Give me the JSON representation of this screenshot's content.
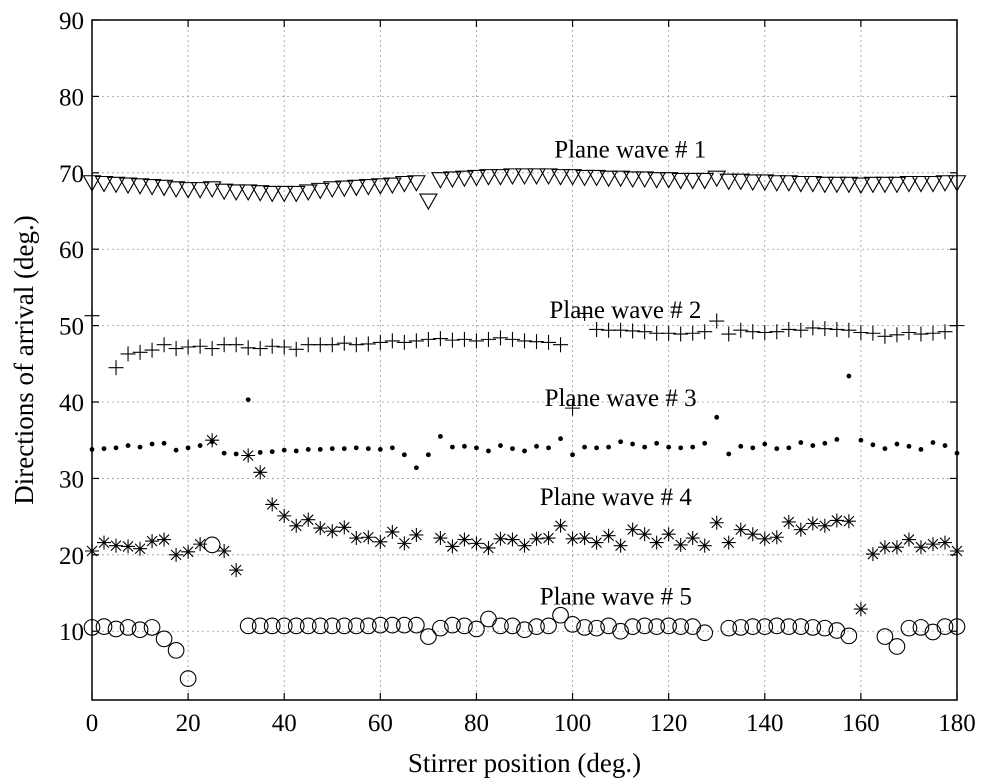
{
  "chart_data": {
    "type": "scatter",
    "xlabel": "Stirrer position (deg.)",
    "ylabel": "Directions of arrival (deg.)",
    "xlim": [
      0,
      180
    ],
    "ylim": [
      1,
      90
    ],
    "xticks": [
      "0",
      "20",
      "40",
      "60",
      "80",
      "100",
      "120",
      "140",
      "160",
      "180"
    ],
    "yticks": [
      "10",
      "20",
      "30",
      "40",
      "50",
      "60",
      "70",
      "80",
      "90"
    ],
    "grid": true,
    "annotations": [
      {
        "text": "Plane wave # 1",
        "x": 112,
        "y": 72
      },
      {
        "text": "Plane wave # 2",
        "x": 111,
        "y": 51
      },
      {
        "text": "Plane wave # 3",
        "x": 110,
        "y": 39.5
      },
      {
        "text": "Plane wave # 4",
        "x": 109,
        "y": 26.5
      },
      {
        "text": "Plane wave # 5",
        "x": 109,
        "y": 13.5
      }
    ],
    "series": [
      {
        "marker": "triangle-down",
        "x": [
          0,
          2.5,
          5,
          7.5,
          10,
          12.5,
          15,
          17.5,
          20,
          22.5,
          25,
          27.5,
          30,
          32.5,
          35,
          37.5,
          40,
          42.5,
          45,
          47.5,
          50,
          52.5,
          55,
          57.5,
          60,
          62.5,
          65,
          67.5,
          70,
          72.5,
          75,
          77.5,
          80,
          82.5,
          85,
          87.5,
          90,
          92.5,
          95,
          97.5,
          100,
          102.5,
          105,
          107.5,
          110,
          112.5,
          115,
          117.5,
          120,
          122.5,
          125,
          127.5,
          130,
          132.5,
          135,
          137.5,
          140,
          142.5,
          145,
          147.5,
          150,
          152.5,
          155,
          157.5,
          160,
          162.5,
          165,
          167.5,
          170,
          172.5,
          175,
          177.5,
          180
        ],
        "y": [
          68.7,
          68.6,
          68.5,
          68.4,
          68.3,
          68.2,
          68.1,
          67.9,
          67.8,
          67.8,
          67.9,
          67.6,
          67.5,
          67.5,
          67.4,
          67.3,
          67.3,
          67.3,
          67.5,
          67.7,
          67.9,
          68.0,
          68.1,
          68.2,
          68.3,
          68.4,
          68.6,
          68.7,
          66.3,
          69.1,
          69.2,
          69.3,
          69.4,
          69.5,
          69.5,
          69.6,
          69.6,
          69.6,
          69.6,
          69.5,
          69.5,
          69.4,
          69.4,
          69.3,
          69.3,
          69.2,
          69.2,
          69.1,
          69.1,
          69.0,
          69.0,
          69.0,
          69.3,
          68.9,
          68.9,
          68.8,
          68.8,
          68.7,
          68.7,
          68.6,
          68.6,
          68.5,
          68.5,
          68.5,
          68.4,
          68.5,
          68.5,
          68.5,
          68.6,
          68.6,
          68.6,
          68.7,
          68.7
        ]
      },
      {
        "marker": "plus",
        "x": [
          0,
          5,
          7.5,
          10,
          12.5,
          15,
          17.5,
          20,
          22.5,
          25,
          27.5,
          30,
          32.5,
          35,
          37.5,
          40,
          42.5,
          45,
          47.5,
          50,
          52.5,
          55,
          57.5,
          60,
          62.5,
          65,
          67.5,
          70,
          72.5,
          75,
          77.5,
          80,
          82.5,
          85,
          87.5,
          90,
          92.5,
          95,
          97.5,
          100,
          102.5,
          105,
          107.5,
          110,
          112.5,
          115,
          117.5,
          120,
          122.5,
          125,
          127.5,
          130,
          132.5,
          135,
          137.5,
          140,
          142.5,
          145,
          147.5,
          150,
          152.5,
          155,
          157.5,
          160,
          162.5,
          165,
          167.5,
          170,
          172.5,
          175,
          177.5,
          180
        ],
        "y": [
          51.3,
          44.5,
          46.3,
          46.5,
          46.8,
          47.5,
          47.0,
          47.2,
          47.3,
          47.0,
          47.5,
          47.5,
          47.1,
          47.0,
          47.3,
          47.2,
          46.9,
          47.5,
          47.5,
          47.5,
          47.7,
          47.5,
          47.6,
          47.8,
          48.0,
          47.8,
          48.0,
          48.2,
          48.3,
          48.1,
          48.2,
          48.0,
          48.2,
          48.4,
          48.2,
          48.0,
          47.9,
          47.8,
          47.5,
          39.2,
          51.6,
          49.5,
          49.4,
          49.4,
          49.3,
          49.2,
          49.0,
          49.0,
          48.9,
          49.0,
          49.2,
          50.6,
          48.9,
          49.4,
          49.2,
          49.1,
          49.2,
          49.5,
          49.4,
          49.7,
          49.6,
          49.5,
          49.4,
          49.1,
          49.0,
          48.6,
          48.8,
          49.1,
          48.9,
          49.0,
          49.2,
          50.0
        ]
      },
      {
        "marker": "dot",
        "x": [
          0,
          2.5,
          5,
          7.5,
          10,
          12.5,
          15,
          17.5,
          20,
          22.5,
          25,
          27.5,
          30,
          32.5,
          35,
          37.5,
          40,
          42.5,
          45,
          47.5,
          50,
          52.5,
          55,
          57.5,
          60,
          62.5,
          65,
          67.5,
          70,
          72.5,
          75,
          77.5,
          80,
          82.5,
          85,
          87.5,
          90,
          92.5,
          95,
          97.5,
          100,
          102.5,
          105,
          107.5,
          110,
          112.5,
          115,
          117.5,
          120,
          122.5,
          125,
          127.5,
          130,
          132.5,
          135,
          137.5,
          140,
          142.5,
          145,
          147.5,
          150,
          152.5,
          155,
          157.5,
          160,
          162.5,
          165,
          167.5,
          170,
          172.5,
          175,
          177.5,
          180
        ],
        "y": [
          33.8,
          33.9,
          34.0,
          34.3,
          34.1,
          34.5,
          34.6,
          33.7,
          34.0,
          34.3,
          34.8,
          33.3,
          33.2,
          40.3,
          33.4,
          33.5,
          33.7,
          33.6,
          33.8,
          33.8,
          33.9,
          33.9,
          34.0,
          33.9,
          33.8,
          34.0,
          33.1,
          31.4,
          33.1,
          35.5,
          34.1,
          34.2,
          34.0,
          33.6,
          34.3,
          33.9,
          33.6,
          34.2,
          34.0,
          35.2,
          33.1,
          34.1,
          34.0,
          34.1,
          34.8,
          34.5,
          34.1,
          34.6,
          34.1,
          34.0,
          34.1,
          34.6,
          38.0,
          33.2,
          34.2,
          34.0,
          34.5,
          33.9,
          34.0,
          34.7,
          34.3,
          34.6,
          35.1,
          43.4,
          35.0,
          34.4,
          33.9,
          34.5,
          34.2,
          33.8,
          34.7,
          34.3,
          33.3
        ]
      },
      {
        "marker": "asterisk",
        "x": [
          0,
          2.5,
          5,
          7.5,
          10,
          12.5,
          15,
          17.5,
          20,
          22.5,
          25,
          27.5,
          30,
          32.5,
          35,
          37.5,
          40,
          42.5,
          45,
          47.5,
          50,
          52.5,
          55,
          57.5,
          60,
          62.5,
          65,
          67.5,
          72.5,
          75,
          77.5,
          80,
          82.5,
          85,
          87.5,
          90,
          92.5,
          95,
          97.5,
          100,
          102.5,
          105,
          107.5,
          110,
          112.5,
          115,
          117.5,
          120,
          122.5,
          125,
          127.5,
          130,
          132.5,
          135,
          137.5,
          140,
          142.5,
          145,
          147.5,
          150,
          152.5,
          155,
          157.5,
          160,
          162.5,
          165,
          167.5,
          170,
          172.5,
          175,
          177.5,
          180
        ],
        "y": [
          20.5,
          21.6,
          21.2,
          21.1,
          20.8,
          21.8,
          22.0,
          20.0,
          20.4,
          21.4,
          35.0,
          20.5,
          18.0,
          33.0,
          30.8,
          26.6,
          25.1,
          23.8,
          24.6,
          23.5,
          23.1,
          23.6,
          22.2,
          22.3,
          21.7,
          23.0,
          21.5,
          22.6,
          22.2,
          21.1,
          22.0,
          21.5,
          20.9,
          22.1,
          22.0,
          21.2,
          22.1,
          22.2,
          23.8,
          22.1,
          22.2,
          21.6,
          22.5,
          21.2,
          23.3,
          22.7,
          21.6,
          22.7,
          21.3,
          22.2,
          21.2,
          24.2,
          21.6,
          23.3,
          22.7,
          22.1,
          22.3,
          24.3,
          23.3,
          24.1,
          23.8,
          24.5,
          24.4,
          12.9,
          20.1,
          21.0,
          21.0,
          22.0,
          21.0,
          21.4,
          21.6,
          20.5
        ]
      },
      {
        "marker": "circle",
        "x": [
          0,
          2.5,
          5,
          7.5,
          10,
          12.5,
          15,
          17.5,
          20,
          25,
          32.5,
          35,
          37.5,
          40,
          42.5,
          45,
          47.5,
          50,
          52.5,
          55,
          57.5,
          60,
          62.5,
          65,
          67.5,
          70,
          72.5,
          75,
          77.5,
          80,
          82.5,
          85,
          87.5,
          90,
          92.5,
          95,
          97.5,
          100,
          102.5,
          105,
          107.5,
          110,
          112.5,
          115,
          117.5,
          120,
          122.5,
          125,
          127.5,
          132.5,
          135,
          137.5,
          140,
          142.5,
          145,
          147.5,
          150,
          152.5,
          155,
          157.5,
          165,
          167.5,
          170,
          172.5,
          175,
          177.5,
          180
        ],
        "y": [
          10.5,
          10.6,
          10.3,
          10.5,
          10.2,
          10.5,
          9.0,
          7.5,
          3.8,
          21.3,
          10.7,
          10.7,
          10.7,
          10.7,
          10.7,
          10.7,
          10.7,
          10.7,
          10.7,
          10.7,
          10.7,
          10.8,
          10.8,
          10.8,
          10.8,
          9.3,
          10.4,
          10.8,
          10.7,
          10.3,
          11.6,
          10.7,
          10.7,
          10.2,
          10.6,
          10.7,
          12.1,
          10.9,
          10.5,
          10.4,
          10.7,
          10.0,
          10.6,
          10.7,
          10.6,
          10.7,
          10.6,
          10.6,
          9.8,
          10.4,
          10.5,
          10.6,
          10.6,
          10.7,
          10.6,
          10.6,
          10.5,
          10.4,
          10.1,
          9.4,
          9.3,
          8.0,
          10.4,
          10.5,
          9.9,
          10.6,
          10.6
        ]
      }
    ]
  }
}
